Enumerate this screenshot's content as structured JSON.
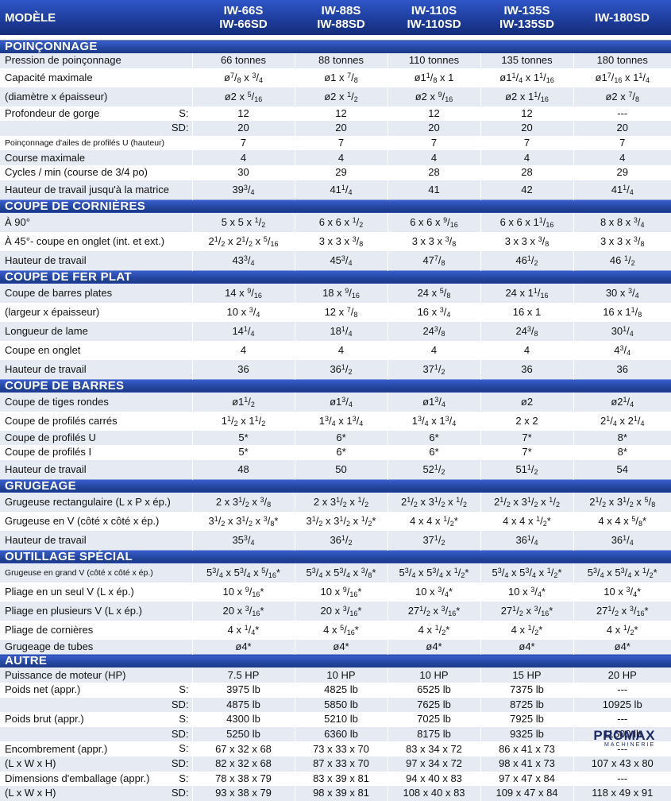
{
  "header": {
    "label": "MODÈLE",
    "models": [
      {
        "line1": "IW-66S",
        "line2": "IW-66SD"
      },
      {
        "line1": "IW-88S",
        "line2": "IW-88SD"
      },
      {
        "line1": "IW-110S",
        "line2": "IW-110SD"
      },
      {
        "line1": "IW-135S",
        "line2": "IW-135SD"
      },
      {
        "line1": "IW-180SD",
        "line2": ""
      }
    ]
  },
  "sections": [
    {
      "title": "POINÇONNAGE",
      "rows": [
        {
          "label": "Pression de poinçonnage",
          "suffix": "",
          "values": [
            "66 tonnes",
            "88 tonnes",
            "110 tonnes",
            "135 tonnes",
            "180 tonnes"
          ]
        },
        {
          "label": "Capacité maximale",
          "suffix": "",
          "values": [
            "ø7/8 x 3/4",
            "ø1 x 7/8",
            "ø11/8 x 1",
            "ø11/4 x 11/16",
            "ø17/16 x 11/4"
          ]
        },
        {
          "label": "(diamètre x épaisseur)",
          "suffix": "",
          "values": [
            "ø2 x 5/16",
            "ø2 x 1/2",
            "ø2 x 9/16",
            "ø2 x 11/16",
            "ø2 x 7/8"
          ]
        },
        {
          "label": "Profondeur de gorge",
          "suffix": "S:",
          "values": [
            "12",
            "12",
            "12",
            "12",
            "---"
          ]
        },
        {
          "label": "",
          "suffix": "SD:",
          "values": [
            "20",
            "20",
            "20",
            "20",
            "20"
          ]
        },
        {
          "label": "Poinçonnage d'ailes de profilés U (hauteur)",
          "suffix": "",
          "small": true,
          "values": [
            "7",
            "7",
            "7",
            "7",
            "7"
          ]
        },
        {
          "label": "Course maximale",
          "suffix": "",
          "values": [
            "4",
            "4",
            "4",
            "4",
            "4"
          ]
        },
        {
          "label": "Cycles / min (course de 3/4 po)",
          "suffix": "",
          "values": [
            "30",
            "29",
            "28",
            "28",
            "29"
          ]
        },
        {
          "label": "Hauteur de travail jusqu'à la matrice",
          "suffix": "",
          "values": [
            "393/4",
            "411/4",
            "41",
            "42",
            "411/4"
          ]
        }
      ]
    },
    {
      "title": "COUPE DE CORNIÈRES",
      "rows": [
        {
          "label": "À 90°",
          "suffix": "",
          "values": [
            "5 x 5 x 1/2",
            "6 x 6 x 1/2",
            "6 x 6 x 9/16",
            "6 x 6 x 11/16",
            "8 x 8 x 3/4"
          ]
        },
        {
          "label": "À 45°- coupe en onglet (int. et ext.)",
          "suffix": "",
          "values": [
            "21/2 x 21/2 x 5/16",
            "3 x 3 x 3/8",
            "3 x 3 x 3/8",
            "3 x 3 x 3/8",
            "3 x 3 x 3/8"
          ]
        },
        {
          "label": "Hauteur de travail",
          "suffix": "",
          "values": [
            "433/4",
            "453/4",
            "477/8",
            "461/2",
            "46 1/2"
          ]
        }
      ]
    },
    {
      "title": "COUPE DE FER PLAT",
      "rows": [
        {
          "label": "Coupe de barres plates",
          "suffix": "",
          "values": [
            "14 x 9/16",
            "18 x 9/16",
            "24 x 5/8",
            "24 x 11/16",
            "30 x 3/4"
          ]
        },
        {
          "label": "(largeur x épaisseur)",
          "suffix": "",
          "values": [
            "10 x 3/4",
            "12 x 7/8",
            "16 x 3/4",
            "16 x 1",
            "16 x 11/8"
          ]
        },
        {
          "label": "Longueur de lame",
          "suffix": "",
          "values": [
            "141/4",
            "181/4",
            "243/8",
            "243/8",
            "301/4"
          ]
        },
        {
          "label": "Coupe en onglet",
          "suffix": "",
          "values": [
            "4",
            "4",
            "4",
            "4",
            "43/4"
          ]
        },
        {
          "label": "Hauteur de travail",
          "suffix": "",
          "values": [
            "36",
            "361/2",
            "371/2",
            "36",
            "36"
          ]
        }
      ]
    },
    {
      "title": "COUPE DE BARRES",
      "rows": [
        {
          "label": "Coupe de tiges rondes",
          "suffix": "",
          "values": [
            "ø11/2",
            "ø13/4",
            "ø13/4",
            "ø2",
            "ø21/4"
          ]
        },
        {
          "label": "Coupe de profilés carrés",
          "suffix": "",
          "values": [
            "11/2 x 11/2",
            "13/4 x 13/4",
            "13/4 x 13/4",
            "2 x 2",
            "21/4 x 21/4"
          ]
        },
        {
          "label": "Coupe de profilés U",
          "suffix": "",
          "values": [
            "5*",
            "6*",
            "6*",
            "7*",
            "8*"
          ]
        },
        {
          "label": "Coupe de profilés I",
          "suffix": "",
          "values": [
            "5*",
            "6*",
            "6*",
            "7*",
            "8*"
          ]
        },
        {
          "label": "Hauteur de travail",
          "suffix": "",
          "values": [
            "48",
            "50",
            "521/2",
            "511/2",
            "54"
          ]
        }
      ]
    },
    {
      "title": "GRUGEAGE",
      "rows": [
        {
          "label": "Grugeuse rectangulaire (L x P x ép.)",
          "suffix": "",
          "values": [
            "2 x 31/2 x 3/8",
            "2 x 31/2 x 1/2",
            "21/2 x 31/2 x 1/2",
            "21/2 x 31/2 x 1/2",
            "21/2 x 31/2 x 5/8"
          ]
        },
        {
          "label": "Grugeuse en V (côté x côté x ép.)",
          "suffix": "",
          "values": [
            "31/2 x 31/2 x 3/8*",
            "31/2 x 31/2 x 1/2*",
            "4 x 4 x 1/2*",
            "4 x 4 x 1/2*",
            "4 x 4 x 5/8*"
          ]
        },
        {
          "label": "Hauteur de travail",
          "suffix": "",
          "values": [
            "353/4",
            "361/2",
            "371/2",
            "361/4",
            "361/4"
          ]
        }
      ]
    },
    {
      "title": "OUTILLAGE SPÉCIAL",
      "rows": [
        {
          "label": "Grugeuse en grand V (côté x côté x ép.)",
          "suffix": "",
          "small": true,
          "values": [
            "53/4 x 53/4 x 5/16*",
            "53/4 x 53/4 x 3/8*",
            "53/4 x 53/4 x 1/2*",
            "53/4 x 53/4 x 1/2*",
            "53/4 x 53/4 x 1/2*"
          ]
        },
        {
          "label": "Pliage en un seul V (L x ép.)",
          "suffix": "",
          "values": [
            "10 x 9/16*",
            "10 x 9/16*",
            "10 x 3/4*",
            "10 x 3/4*",
            "10 x 3/4*"
          ]
        },
        {
          "label": "Pliage en plusieurs V (L x ép.)",
          "suffix": "",
          "values": [
            "20 x 3/16*",
            "20 x 3/16*",
            "271/2 x 3/16*",
            "271/2 x 3/16*",
            "271/2 x 3/16*"
          ]
        },
        {
          "label": "Pliage de cornières",
          "suffix": "",
          "values": [
            "4 x 1/4*",
            "4 x 5/16*",
            "4 x 1/2*",
            "4 x 1/2*",
            "4 x 1/2*"
          ]
        },
        {
          "label": "Grugeage de tubes",
          "suffix": "",
          "values": [
            "ø4*",
            "ø4*",
            "ø4*",
            "ø4*",
            "ø4*"
          ]
        }
      ]
    },
    {
      "title": "AUTRE",
      "rows": [
        {
          "label": "Puissance de moteur (HP)",
          "suffix": "",
          "values": [
            "7.5 HP",
            "10 HP",
            "10 HP",
            "15 HP",
            "20 HP"
          ]
        },
        {
          "label": "Poids net (appr.)",
          "suffix": "S:",
          "values": [
            "3975 lb",
            "4825 lb",
            "6525 lb",
            "7375 lb",
            "---"
          ]
        },
        {
          "label": "",
          "suffix": "SD:",
          "values": [
            "4875 lb",
            "5850 lb",
            "7625 lb",
            "8725 lb",
            "10925 lb"
          ]
        },
        {
          "label": "Poids brut (appr.)",
          "suffix": "S:",
          "values": [
            "4300 lb",
            "5210 lb",
            "7025 lb",
            "7925 lb",
            "---"
          ]
        },
        {
          "label": "",
          "suffix": "SD:",
          "values": [
            "5250 lb",
            "6360 lb",
            "8175 lb",
            "9325 lb",
            "11600 lb"
          ]
        },
        {
          "label": "Encombrement (appr.)",
          "suffix": "S:",
          "values": [
            "67 x 32 x 68",
            "73 x 33 x 70",
            "83 x 34 x 72",
            "86 x 41 x 73",
            "---"
          ]
        },
        {
          "label": "(L x W x H)",
          "suffix": "SD:",
          "values": [
            "82 x 32 x 68",
            "87 x 33 x 70",
            "97 x 34 x 72",
            "98 x 41 x 73",
            "107 x 43 x 80"
          ]
        },
        {
          "label": "Dimensions d'emballage (appr.)",
          "suffix": "S:",
          "values": [
            "78 x 38 x 79",
            "83 x 39 x 81",
            "94 x 40 x 83",
            "97 x 47 x 84",
            "---"
          ]
        },
        {
          "label": "(L x W x H)",
          "suffix": "SD:",
          "values": [
            "93 x 38 x 79",
            "98 x 39 x 81",
            "108 x 40 x 83",
            "109 x 47 x 84",
            "118 x 49 x 91"
          ]
        }
      ]
    }
  ],
  "footer": {
    "brand": "PROMAX",
    "tagline": "MACHINERIE"
  },
  "colors": {
    "header_blue": "#1e3e9e",
    "row_shade": "#e6eaf3",
    "brand": "#1d2b6b"
  }
}
